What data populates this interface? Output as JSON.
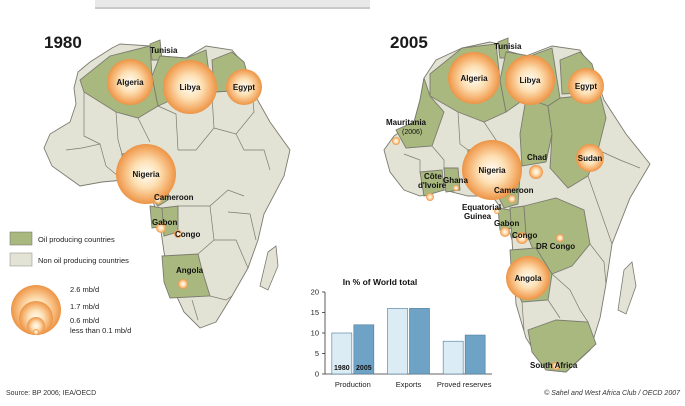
{
  "maps": [
    {
      "year": "1980",
      "labels": [
        {
          "id": "tunisia",
          "text": "Tunisia"
        },
        {
          "id": "algeria",
          "text": "Algeria"
        },
        {
          "id": "libya",
          "text": "Libya"
        },
        {
          "id": "egypt",
          "text": "Egypt"
        },
        {
          "id": "nigeria",
          "text": "Nigeria"
        },
        {
          "id": "cameroon",
          "text": "Cameroon"
        },
        {
          "id": "gabon",
          "text": "Gabon"
        },
        {
          "id": "congo",
          "text": "Congo"
        },
        {
          "id": "angola",
          "text": "Angola"
        }
      ]
    },
    {
      "year": "2005",
      "labels": [
        {
          "id": "tunisia",
          "text": "Tunisia"
        },
        {
          "id": "algeria",
          "text": "Algeria"
        },
        {
          "id": "libya",
          "text": "Libya"
        },
        {
          "id": "egypt",
          "text": "Egypt"
        },
        {
          "id": "mauritania",
          "text": "Mauritania"
        },
        {
          "id": "mauritania_note",
          "text": "(2006)"
        },
        {
          "id": "chad",
          "text": "Chad"
        },
        {
          "id": "sudan",
          "text": "Sudan"
        },
        {
          "id": "nigeria",
          "text": "Nigeria"
        },
        {
          "id": "cote1",
          "text": "Côte"
        },
        {
          "id": "cote2",
          "text": "d'Ivoire"
        },
        {
          "id": "ghana",
          "text": "Ghana"
        },
        {
          "id": "cameroon",
          "text": "Cameroon"
        },
        {
          "id": "eqguinea1",
          "text": "Equatorial"
        },
        {
          "id": "eqguinea2",
          "text": "Guinea"
        },
        {
          "id": "gabon",
          "text": "Gabon"
        },
        {
          "id": "congo",
          "text": "Congo"
        },
        {
          "id": "drcongo",
          "text": "DR Congo"
        },
        {
          "id": "angola",
          "text": "Angola"
        },
        {
          "id": "southafrica",
          "text": "South Africa"
        }
      ]
    }
  ],
  "legend": {
    "producing": "Oil producing countries",
    "nonproducing": "Non oil producing countries",
    "sizes": [
      "2.6 mb/d",
      "1.7 mb/d",
      "0.6 mb/d",
      "less than 0.1 mb/d"
    ]
  },
  "colors": {
    "producing": "#a9b87e",
    "nonproducing": "#e2e2d5",
    "border": "#7b7b70",
    "bar1980": "#dcecf4",
    "bar2005": "#6fa3c6"
  },
  "chart_data": {
    "type": "bar",
    "title": "In % of World total",
    "categories": [
      "Production",
      "Exports",
      "Proved reserves"
    ],
    "series": [
      {
        "name": "1980",
        "values": [
          10,
          16,
          8
        ]
      },
      {
        "name": "2005",
        "values": [
          12,
          16,
          9.5
        ]
      }
    ],
    "ylim": [
      0,
      20
    ],
    "yticks": [
      0,
      5,
      10,
      15,
      20
    ],
    "bar_labels": [
      "1980",
      "2005"
    ]
  },
  "source": "Source: BP 2006; IEA/OECD",
  "credit": "© Sahel and West Africa Club / OECD 2007"
}
